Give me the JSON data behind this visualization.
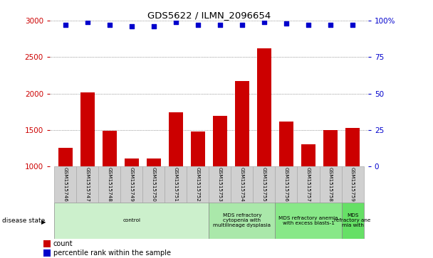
{
  "title": "GDS5622 / ILMN_2096654",
  "samples": [
    "GSM1515746",
    "GSM1515747",
    "GSM1515748",
    "GSM1515749",
    "GSM1515750",
    "GSM1515751",
    "GSM1515752",
    "GSM1515753",
    "GSM1515754",
    "GSM1515755",
    "GSM1515756",
    "GSM1515757",
    "GSM1515758",
    "GSM1515759"
  ],
  "counts": [
    1250,
    2020,
    1490,
    1110,
    1110,
    1740,
    1480,
    1690,
    2170,
    2620,
    1620,
    1300,
    1500,
    1530
  ],
  "percentile_ranks": [
    97,
    99,
    97,
    96,
    96,
    99,
    97,
    97,
    97,
    99,
    98,
    97,
    97,
    97
  ],
  "bar_color": "#cc0000",
  "dot_color": "#0000cc",
  "ylim_left": [
    1000,
    3000
  ],
  "ylim_right": [
    0,
    100
  ],
  "yticks_left": [
    1000,
    1500,
    2000,
    2500,
    3000
  ],
  "yticks_right": [
    0,
    25,
    50,
    75,
    100
  ],
  "ytick_labels_right": [
    "0",
    "25",
    "50",
    "75",
    "100%"
  ],
  "disease_groups": [
    {
      "label": "control",
      "start": 0,
      "end": 7,
      "color": "#ccf0cc"
    },
    {
      "label": "MDS refractory\ncytopenia with\nmultilineage dysplasia",
      "start": 7,
      "end": 10,
      "color": "#aae8aa"
    },
    {
      "label": "MDS refractory anemia\nwith excess blasts-1",
      "start": 10,
      "end": 13,
      "color": "#88e888"
    },
    {
      "label": "MDS\nrefractory ane\nmia with",
      "start": 13,
      "end": 14,
      "color": "#66e066"
    }
  ],
  "disease_state_label": "disease state",
  "legend_count_label": "count",
  "legend_percentile_label": "percentile rank within the sample",
  "background_color": "#ffffff",
  "plot_bg_color": "#ffffff",
  "grid_color": "#555555",
  "sample_box_color": "#d0d0d0",
  "sample_box_edge": "#aaaaaa",
  "tick_color_left": "#cc0000",
  "tick_color_right": "#0000cc"
}
